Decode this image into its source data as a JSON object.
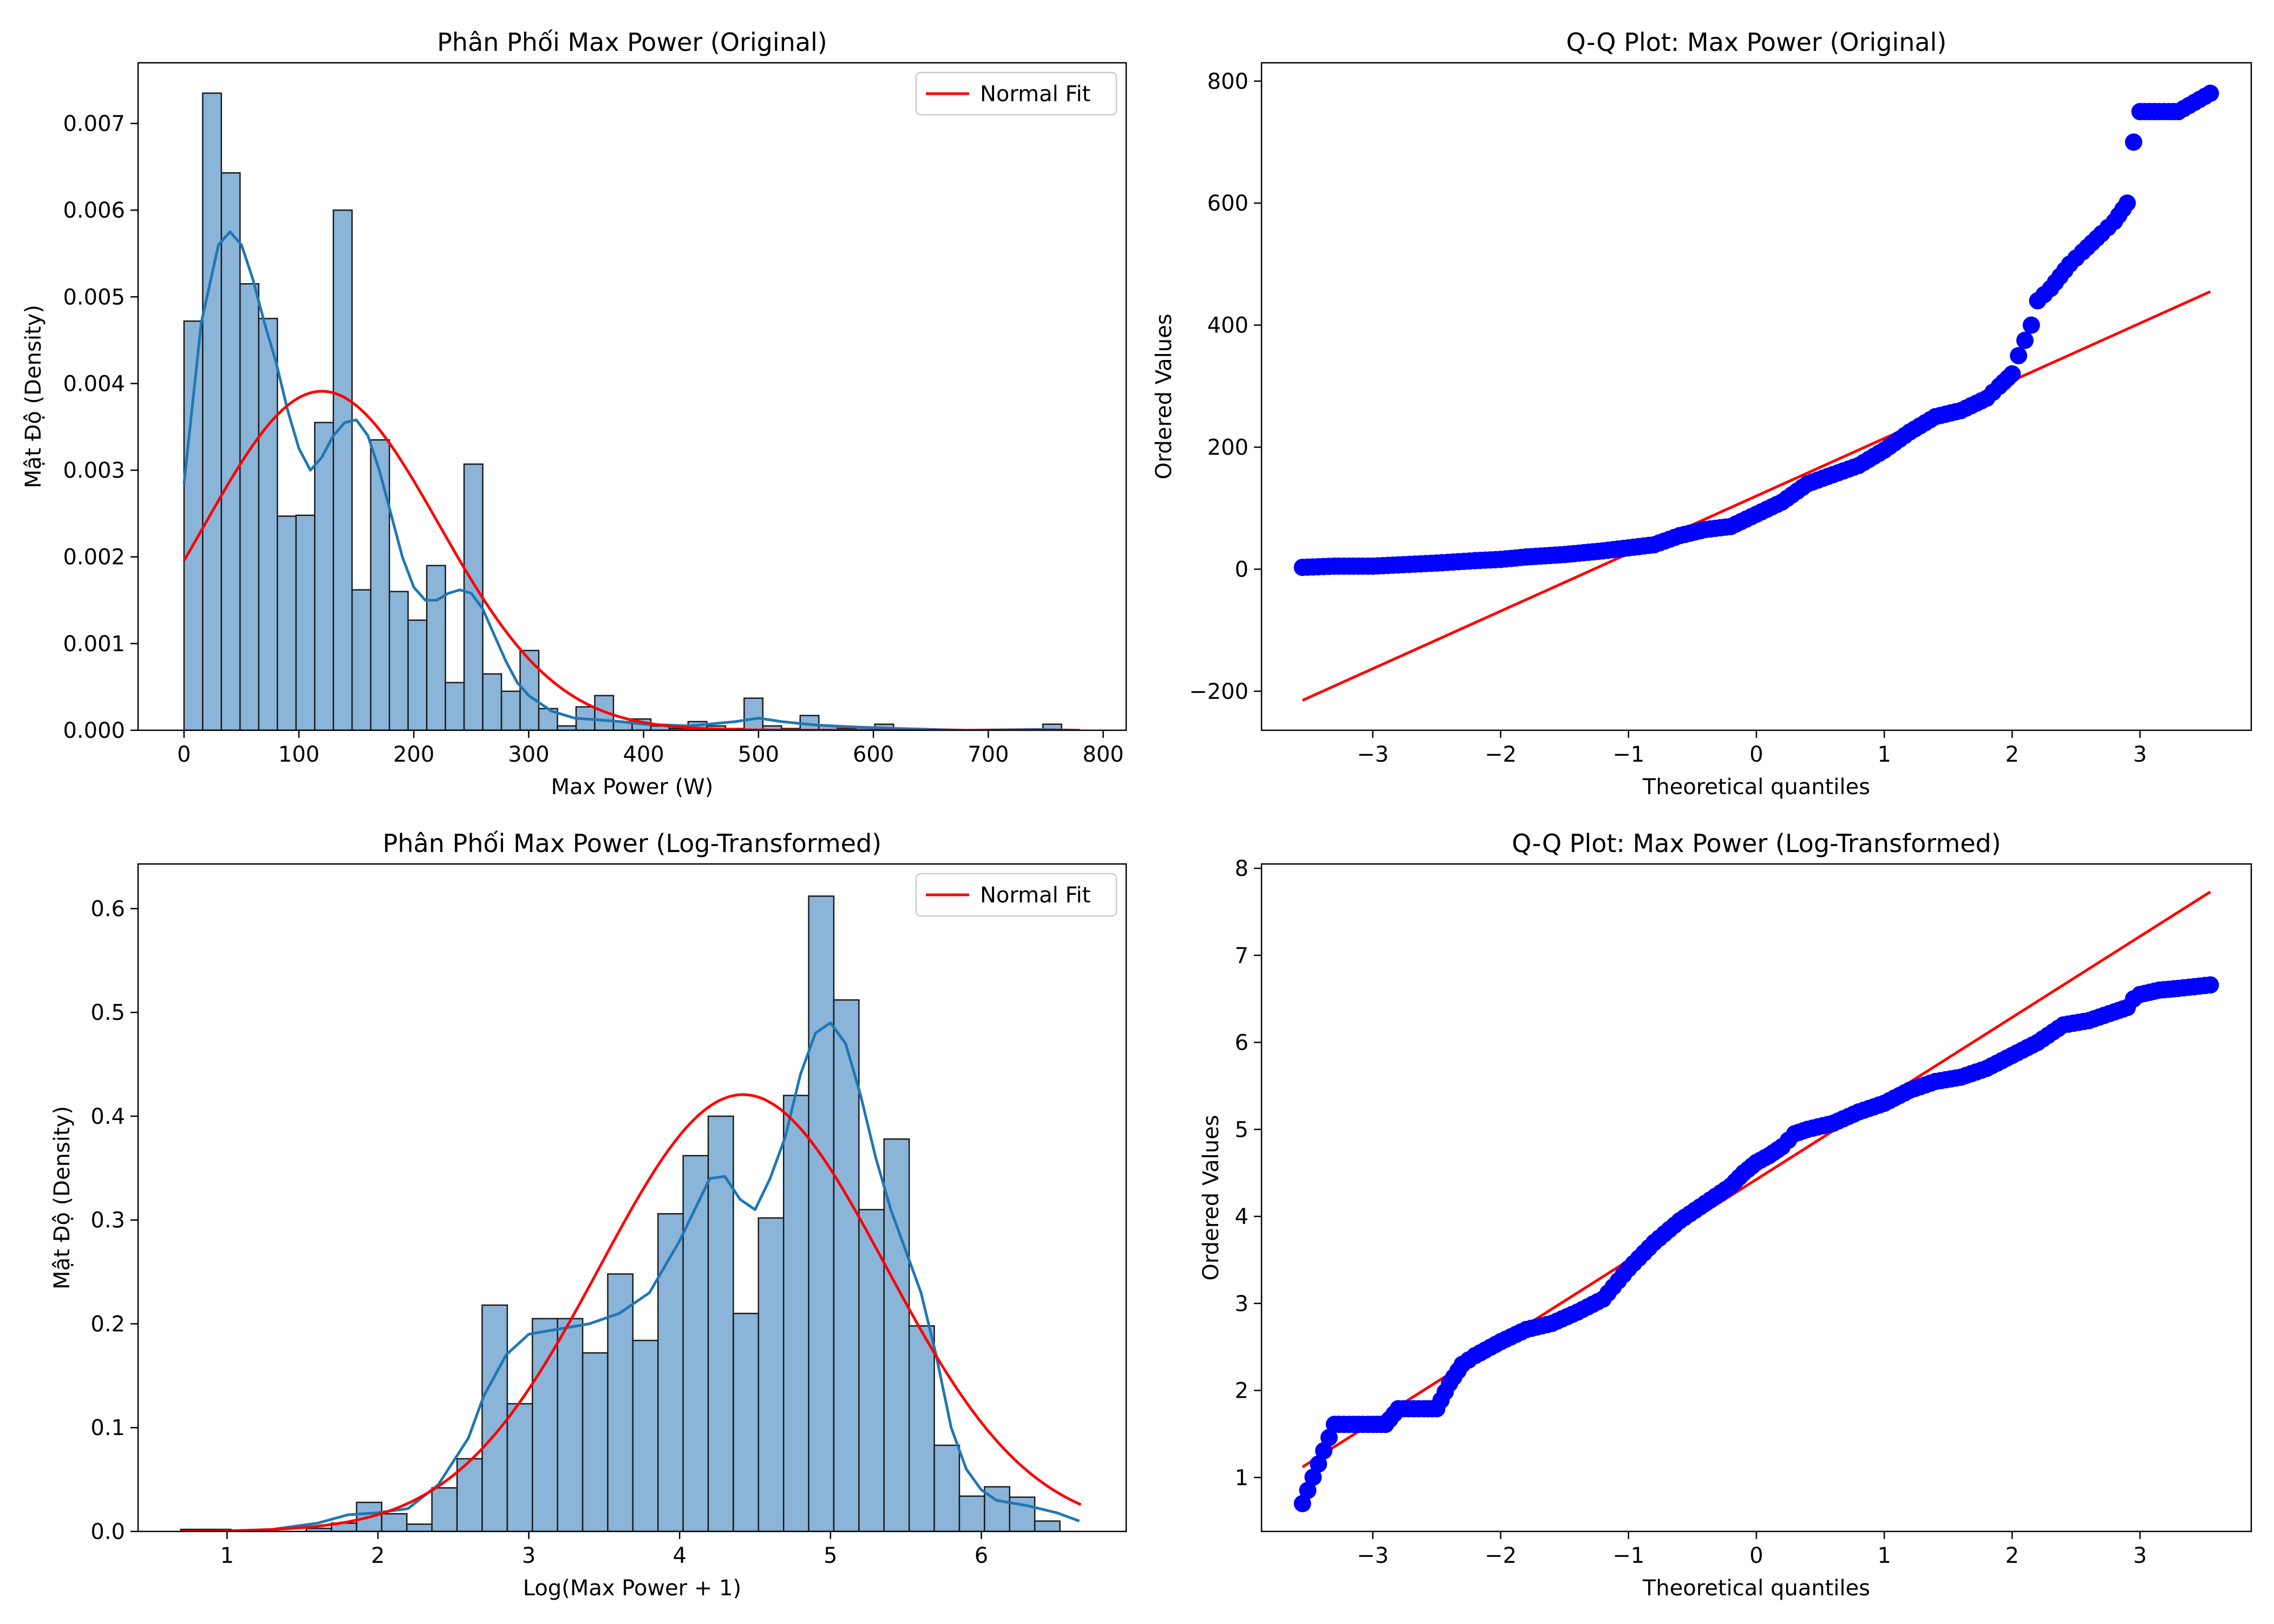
{
  "chart_data": [
    {
      "type": "bar",
      "title": "Phân Phối Max Power (Original)",
      "xlabel": "Max Power (W)",
      "ylabel": "Mật Độ (Density)",
      "xlim": [
        -40,
        820
      ],
      "ylim": [
        0,
        0.0077
      ],
      "xticks": [
        0,
        100,
        200,
        300,
        400,
        500,
        600,
        700,
        800
      ],
      "yticks": [
        0.0,
        0.001,
        0.002,
        0.003,
        0.004,
        0.005,
        0.006,
        0.007
      ],
      "ytick_labels": [
        "0.000",
        "0.001",
        "0.002",
        "0.003",
        "0.004",
        "0.005",
        "0.006",
        "0.007"
      ],
      "bin_start": 0,
      "bin_width": 16.25,
      "values": [
        0.00472,
        0.00735,
        0.00643,
        0.00515,
        0.00475,
        0.00247,
        0.00248,
        0.00355,
        0.006,
        0.00162,
        0.00335,
        0.0016,
        0.00127,
        0.0019,
        0.00055,
        0.00307,
        0.00065,
        0.00045,
        0.00092,
        0.00025,
        5e-05,
        0.00027,
        0.0004,
        0.0001,
        0.00013,
        5e-05,
        2e-05,
        0.0001,
        5e-05,
        2e-05,
        0.00037,
        5e-05,
        2e-05,
        0.00017,
        5e-05,
        2e-05,
        3e-05,
        7e-05,
        0.0,
        0.0,
        0.0,
        0.0,
        0.0,
        0.0,
        0.0,
        0.0,
        7e-05,
        0.0
      ],
      "kde": {
        "x": [
          0,
          15,
          30,
          40,
          50,
          60,
          70,
          80,
          90,
          100,
          110,
          120,
          130,
          140,
          150,
          160,
          170,
          180,
          190,
          200,
          210,
          220,
          230,
          240,
          250,
          260,
          270,
          280,
          290,
          300,
          320,
          340,
          360,
          380,
          400,
          440,
          480,
          500,
          520,
          550,
          580,
          620,
          680,
          740,
          780
        ],
        "y": [
          0.00285,
          0.0047,
          0.0056,
          0.00575,
          0.0056,
          0.0052,
          0.0047,
          0.00425,
          0.0037,
          0.00325,
          0.003,
          0.00315,
          0.0034,
          0.00355,
          0.00358,
          0.0034,
          0.003,
          0.0025,
          0.002,
          0.00165,
          0.0015,
          0.0015,
          0.00158,
          0.00162,
          0.00158,
          0.0014,
          0.0011,
          0.0008,
          0.00055,
          0.0004,
          0.00022,
          0.00014,
          0.00012,
          0.0001,
          7e-05,
          5e-05,
          0.0001,
          0.00014,
          0.0001,
          6e-05,
          4e-05,
          2e-05,
          0.0,
          1e-05,
          0.0
        ]
      },
      "normal_fit": {
        "mean": 120,
        "sd": 102,
        "x_range": [
          0,
          780
        ]
      },
      "legend": {
        "label": "Normal Fit",
        "position": "top-right"
      },
      "grid": false,
      "colors": {
        "bars": "#8ab4d8",
        "bar_edge": "#1a1a1a",
        "kde": "#1f77b4",
        "fit": "#ff0000"
      }
    },
    {
      "type": "scatter",
      "title": "Q-Q Plot: Max Power (Original)",
      "xlabel": "Theoretical quantiles",
      "ylabel": "Ordered Values",
      "xlim": [
        -3.87,
        3.87
      ],
      "ylim": [
        -264,
        830
      ],
      "xticks": [
        -3,
        -2,
        -1,
        0,
        1,
        2,
        3
      ],
      "xtick_labels": [
        "−3",
        "−2",
        "−1",
        "0",
        "1",
        "2",
        "3"
      ],
      "yticks": [
        -200,
        0,
        200,
        400,
        600,
        800
      ],
      "ytick_labels": [
        "−200",
        "0",
        "200",
        "400",
        "600",
        "800"
      ],
      "points": {
        "x": [
          -3.55,
          -3.3,
          -3.15,
          -3.0,
          -2.8,
          -2.5,
          -2.2,
          -2.0,
          -1.8,
          -1.5,
          -1.2,
          -1.0,
          -0.8,
          -0.6,
          -0.4,
          -0.2,
          0.0,
          0.2,
          0.4,
          0.6,
          0.8,
          1.0,
          1.2,
          1.4,
          1.6,
          1.8,
          1.9,
          2.0,
          2.05,
          2.1,
          2.15,
          2.2,
          2.3,
          2.45,
          2.55,
          2.7,
          2.8,
          2.9,
          2.95,
          3.0,
          3.15,
          3.3,
          3.55
        ],
        "y": [
          3,
          5,
          5,
          5,
          7,
          10,
          14,
          16,
          20,
          24,
          30,
          35,
          40,
          55,
          65,
          70,
          90,
          110,
          140,
          155,
          170,
          195,
          225,
          250,
          260,
          280,
          300,
          320,
          350,
          375,
          400,
          440,
          460,
          500,
          520,
          550,
          570,
          600,
          700,
          750,
          750,
          750,
          780
        ]
      },
      "fit_line": {
        "x": [
          -3.55,
          3.55
        ],
        "y": [
          -215,
          455
        ]
      },
      "grid": false,
      "colors": {
        "points": "#0000ff",
        "line": "#ff0000"
      }
    },
    {
      "type": "bar",
      "title": "Phân Phối Max Power (Log-Transformed)",
      "xlabel": "Log(Max Power + 1)",
      "ylabel": "Mật Độ (Density)",
      "xlim": [
        0.41,
        6.96
      ],
      "ylim": [
        0,
        0.643
      ],
      "xticks": [
        1,
        2,
        3,
        4,
        5,
        6
      ],
      "yticks": [
        0.0,
        0.1,
        0.2,
        0.3,
        0.4,
        0.5,
        0.6
      ],
      "ytick_labels": [
        "0.0",
        "0.1",
        "0.2",
        "0.3",
        "0.4",
        "0.5",
        "0.6"
      ],
      "bin_start": 0.693,
      "bin_width": 0.1665,
      "values": [
        0.002,
        0.002,
        0.0,
        0.0,
        0.0,
        0.003,
        0.008,
        0.028,
        0.017,
        0.007,
        0.042,
        0.07,
        0.218,
        0.123,
        0.205,
        0.205,
        0.172,
        0.248,
        0.184,
        0.306,
        0.362,
        0.4,
        0.21,
        0.302,
        0.42,
        0.612,
        0.512,
        0.31,
        0.378,
        0.198,
        0.083,
        0.034,
        0.043,
        0.033,
        0.01
      ],
      "kde": {
        "x": [
          0.9,
          1.3,
          1.6,
          1.8,
          2.0,
          2.2,
          2.4,
          2.6,
          2.7,
          2.85,
          3.0,
          3.2,
          3.4,
          3.6,
          3.8,
          4.0,
          4.1,
          4.2,
          4.3,
          4.4,
          4.5,
          4.6,
          4.7,
          4.8,
          4.9,
          5.0,
          5.1,
          5.2,
          5.3,
          5.4,
          5.5,
          5.6,
          5.7,
          5.8,
          5.9,
          6.0,
          6.1,
          6.3,
          6.5,
          6.65
        ],
        "y": [
          0.0,
          0.002,
          0.008,
          0.016,
          0.018,
          0.022,
          0.045,
          0.09,
          0.13,
          0.17,
          0.19,
          0.195,
          0.2,
          0.21,
          0.23,
          0.28,
          0.31,
          0.34,
          0.342,
          0.32,
          0.31,
          0.34,
          0.38,
          0.44,
          0.48,
          0.49,
          0.47,
          0.42,
          0.36,
          0.31,
          0.27,
          0.23,
          0.17,
          0.1,
          0.06,
          0.04,
          0.03,
          0.025,
          0.018,
          0.01
        ]
      },
      "normal_fit": {
        "mean": 4.42,
        "sd": 0.948,
        "x_range": [
          0.69,
          6.66
        ]
      },
      "legend": {
        "label": "Normal Fit",
        "position": "top-right"
      },
      "grid": false,
      "colors": {
        "bars": "#8ab4d8",
        "bar_edge": "#1a1a1a",
        "kde": "#1f77b4",
        "fit": "#ff0000"
      }
    },
    {
      "type": "scatter",
      "title": "Q-Q Plot: Max Power (Log-Transformed)",
      "xlabel": "Theoretical quantiles",
      "ylabel": "Ordered Values",
      "xlim": [
        -3.87,
        3.87
      ],
      "ylim": [
        0.38,
        8.05
      ],
      "xticks": [
        -3,
        -2,
        -1,
        0,
        1,
        2,
        3
      ],
      "xtick_labels": [
        "−3",
        "−2",
        "−1",
        "0",
        "1",
        "2",
        "3"
      ],
      "yticks": [
        1,
        2,
        3,
        4,
        5,
        6,
        7,
        8
      ],
      "points": {
        "x": [
          -3.55,
          -3.3,
          -3.15,
          -3.0,
          -2.9,
          -2.8,
          -2.6,
          -2.5,
          -2.4,
          -2.3,
          -2.2,
          -2.0,
          -1.8,
          -1.6,
          -1.4,
          -1.2,
          -1.0,
          -0.8,
          -0.6,
          -0.4,
          -0.2,
          -0.1,
          0.0,
          0.1,
          0.2,
          0.3,
          0.4,
          0.6,
          0.8,
          1.0,
          1.2,
          1.4,
          1.6,
          1.8,
          2.0,
          2.2,
          2.4,
          2.6,
          2.8,
          2.9,
          2.95,
          3.0,
          3.15,
          3.3,
          3.55
        ],
        "y": [
          0.7,
          1.61,
          1.61,
          1.61,
          1.61,
          1.79,
          1.79,
          1.79,
          2.08,
          2.3,
          2.4,
          2.56,
          2.7,
          2.77,
          2.9,
          3.05,
          3.4,
          3.7,
          3.95,
          4.15,
          4.35,
          4.5,
          4.62,
          4.7,
          4.8,
          4.95,
          5.0,
          5.07,
          5.2,
          5.3,
          5.45,
          5.55,
          5.6,
          5.7,
          5.85,
          6.0,
          6.2,
          6.25,
          6.35,
          6.4,
          6.5,
          6.55,
          6.6,
          6.62,
          6.66
        ]
      },
      "fit_line": {
        "x": [
          -3.55,
          3.55
        ],
        "y": [
          1.12,
          7.73
        ]
      },
      "grid": false,
      "colors": {
        "points": "#0000ff",
        "line": "#ff0000"
      }
    }
  ]
}
